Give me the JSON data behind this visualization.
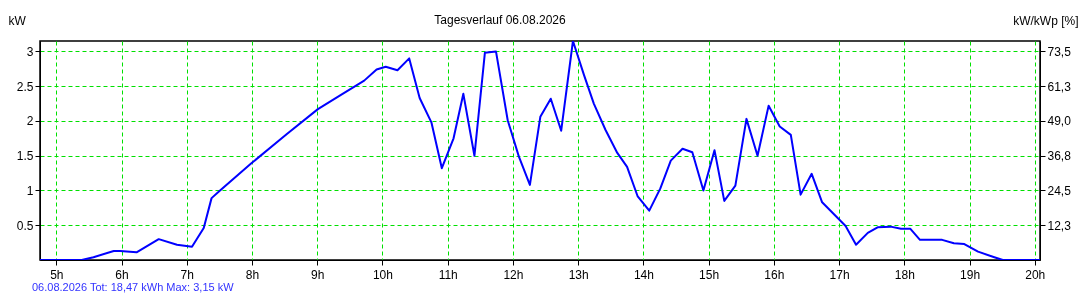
{
  "chart_data": {
    "type": "line",
    "title": "Tagesverlauf 06.08.2026",
    "ylabel": "kW",
    "y2label": "kW/kWp [%]",
    "annotations": [
      "06.08.2026 Tot: 18,47 kWh Max: 3,15 kW"
    ],
    "xlim": [
      4.75,
      20.08
    ],
    "ylim": [
      0,
      3.15
    ],
    "y2lim": [
      0,
      77.2
    ],
    "xticks": [
      {
        "value": 5,
        "label": "5h"
      },
      {
        "value": 6,
        "label": "6h"
      },
      {
        "value": 7,
        "label": "7h"
      },
      {
        "value": 8,
        "label": "8h"
      },
      {
        "value": 9,
        "label": "9h"
      },
      {
        "value": 10,
        "label": "10h"
      },
      {
        "value": 11,
        "label": "11h"
      },
      {
        "value": 12,
        "label": "12h"
      },
      {
        "value": 13,
        "label": "13h"
      },
      {
        "value": 14,
        "label": "14h"
      },
      {
        "value": 15,
        "label": "15h"
      },
      {
        "value": 16,
        "label": "16h"
      },
      {
        "value": 17,
        "label": "17h"
      },
      {
        "value": 18,
        "label": "18h"
      },
      {
        "value": 19,
        "label": "19h"
      },
      {
        "value": 20,
        "label": "20h"
      }
    ],
    "yticks": [
      0.5,
      1,
      1.5,
      2,
      2.5,
      3
    ],
    "y2ticks": [
      {
        "value": 12.3,
        "label": "12,3"
      },
      {
        "value": 24.5,
        "label": "24,5"
      },
      {
        "value": 36.8,
        "label": "36,8"
      },
      {
        "value": 49.0,
        "label": "49,0"
      },
      {
        "value": 61.3,
        "label": "61,3"
      },
      {
        "value": 73.5,
        "label": "73,5"
      }
    ],
    "grid": true,
    "marker": "none",
    "line_style": "solid",
    "x": [
      4.75,
      5.39,
      5.57,
      5.88,
      5.98,
      6.23,
      6.57,
      6.85,
      7.08,
      7.26,
      7.38,
      7.51,
      7.99,
      8.53,
      9.01,
      9.37,
      9.72,
      9.91,
      10.05,
      10.23,
      10.41,
      10.57,
      10.75,
      10.91,
      11.09,
      11.24,
      11.41,
      11.57,
      11.74,
      11.92,
      12.09,
      12.26,
      12.42,
      12.58,
      12.74,
      12.92,
      13.09,
      13.24,
      13.42,
      13.6,
      13.75,
      13.91,
      14.09,
      14.26,
      14.42,
      14.6,
      14.75,
      14.92,
      15.09,
      15.24,
      15.41,
      15.58,
      15.75,
      15.92,
      16.09,
      16.26,
      16.41,
      16.58,
      16.74,
      17.1,
      17.26,
      17.44,
      17.59,
      17.79,
      17.95,
      18.09,
      18.24,
      18.58,
      18.76,
      18.92,
      19.13,
      19.38,
      19.51,
      20.08
    ],
    "series": [
      {
        "color": "#0000ff",
        "values": [
          0,
          0,
          0.04,
          0.13,
          0.13,
          0.11,
          0.3,
          0.22,
          0.19,
          0.46,
          0.89,
          1.0,
          1.39,
          1.81,
          2.17,
          2.38,
          2.58,
          2.74,
          2.78,
          2.73,
          2.9,
          2.33,
          1.98,
          1.32,
          1.75,
          2.39,
          1.5,
          2.98,
          3.0,
          2.01,
          1.49,
          1.08,
          2.06,
          2.32,
          1.86,
          3.15,
          2.66,
          2.25,
          1.87,
          1.54,
          1.34,
          0.92,
          0.71,
          1.03,
          1.43,
          1.6,
          1.55,
          1.0,
          1.58,
          0.85,
          1.07,
          2.03,
          1.5,
          2.22,
          1.92,
          1.8,
          0.94,
          1.24,
          0.83,
          0.49,
          0.22,
          0.39,
          0.47,
          0.48,
          0.45,
          0.45,
          0.29,
          0.29,
          0.24,
          0.23,
          0.12,
          0.04,
          0,
          0
        ]
      }
    ]
  }
}
